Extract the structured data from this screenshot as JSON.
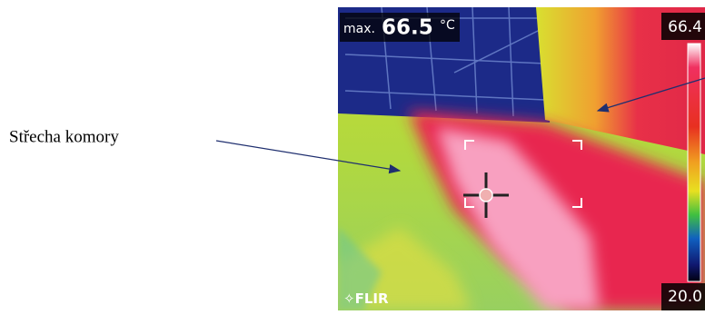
{
  "caption": "Střecha komory",
  "thermal_image": {
    "max_prefix": "max.",
    "max_value": "66.5",
    "unit": "°C",
    "scale_top": "66.4",
    "scale_bottom": "20.0",
    "brand": "FLIR"
  }
}
